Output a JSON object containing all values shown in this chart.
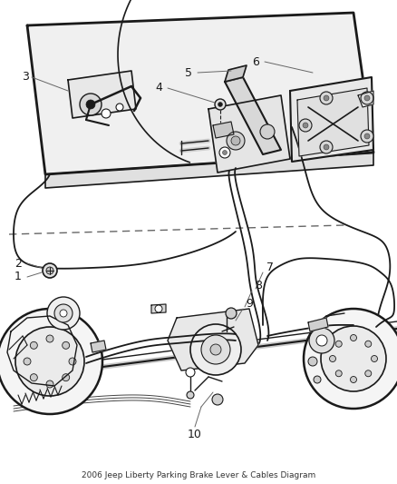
{
  "title": "2006 Jeep Liberty Parking Brake Lever & Cables Diagram",
  "bg": "#ffffff",
  "lc": "#1a1a1a",
  "dc": "#666666",
  "figsize": [
    4.38,
    5.33
  ],
  "dpi": 100
}
